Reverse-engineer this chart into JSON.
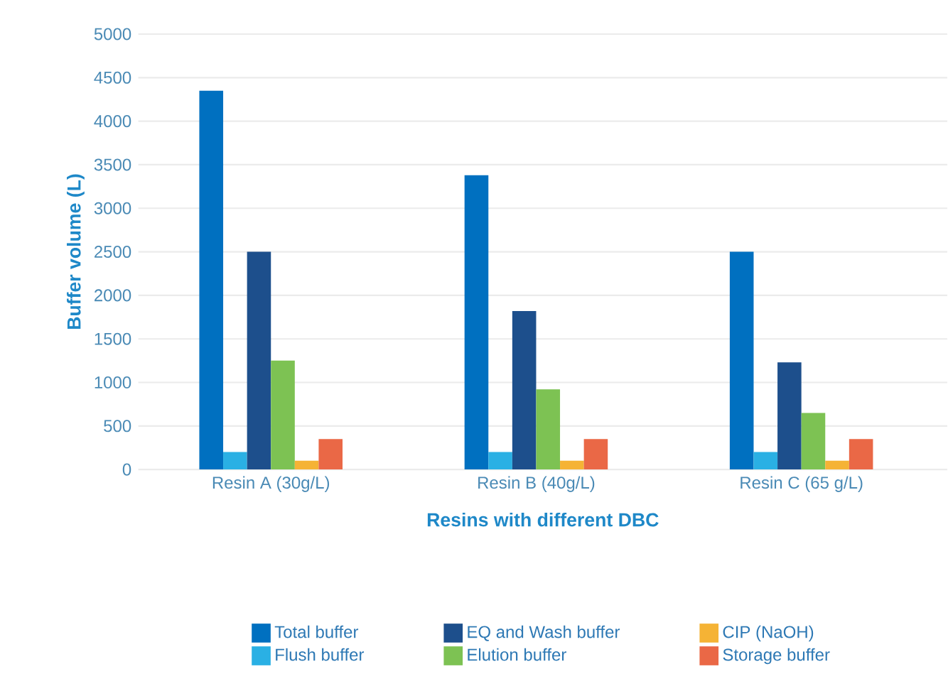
{
  "chart_data": {
    "type": "bar",
    "xlabel": "Resins with different DBC",
    "ylabel": "Buffer volume (L)",
    "categories": [
      "Resin A (30g/L)",
      "Resin B (40g/L)",
      "Resin C (65 g/L)"
    ],
    "series": [
      {
        "name": "Total buffer",
        "color": "#0070c0",
        "values": [
          4350,
          3380,
          2500
        ]
      },
      {
        "name": "Flush buffer",
        "color": "#2ab0e4",
        "values": [
          200,
          200,
          200
        ]
      },
      {
        "name": "EQ and Wash buffer",
        "color": "#1d4f8c",
        "values": [
          2500,
          1820,
          1230
        ]
      },
      {
        "name": "Elution buffer",
        "color": "#7dc253",
        "values": [
          1250,
          920,
          650
        ]
      },
      {
        "name": "CIP (NaOH)",
        "color": "#f5b335",
        "values": [
          100,
          100,
          100
        ]
      },
      {
        "name": "Storage buffer",
        "color": "#ea6846",
        "values": [
          350,
          350,
          350
        ]
      }
    ],
    "ylim": [
      0,
      5000
    ],
    "yticks": [
      0,
      500,
      1000,
      1500,
      2000,
      2500,
      3000,
      3500,
      4000,
      4500,
      5000
    ],
    "grid": "y",
    "legend": "bottom"
  }
}
